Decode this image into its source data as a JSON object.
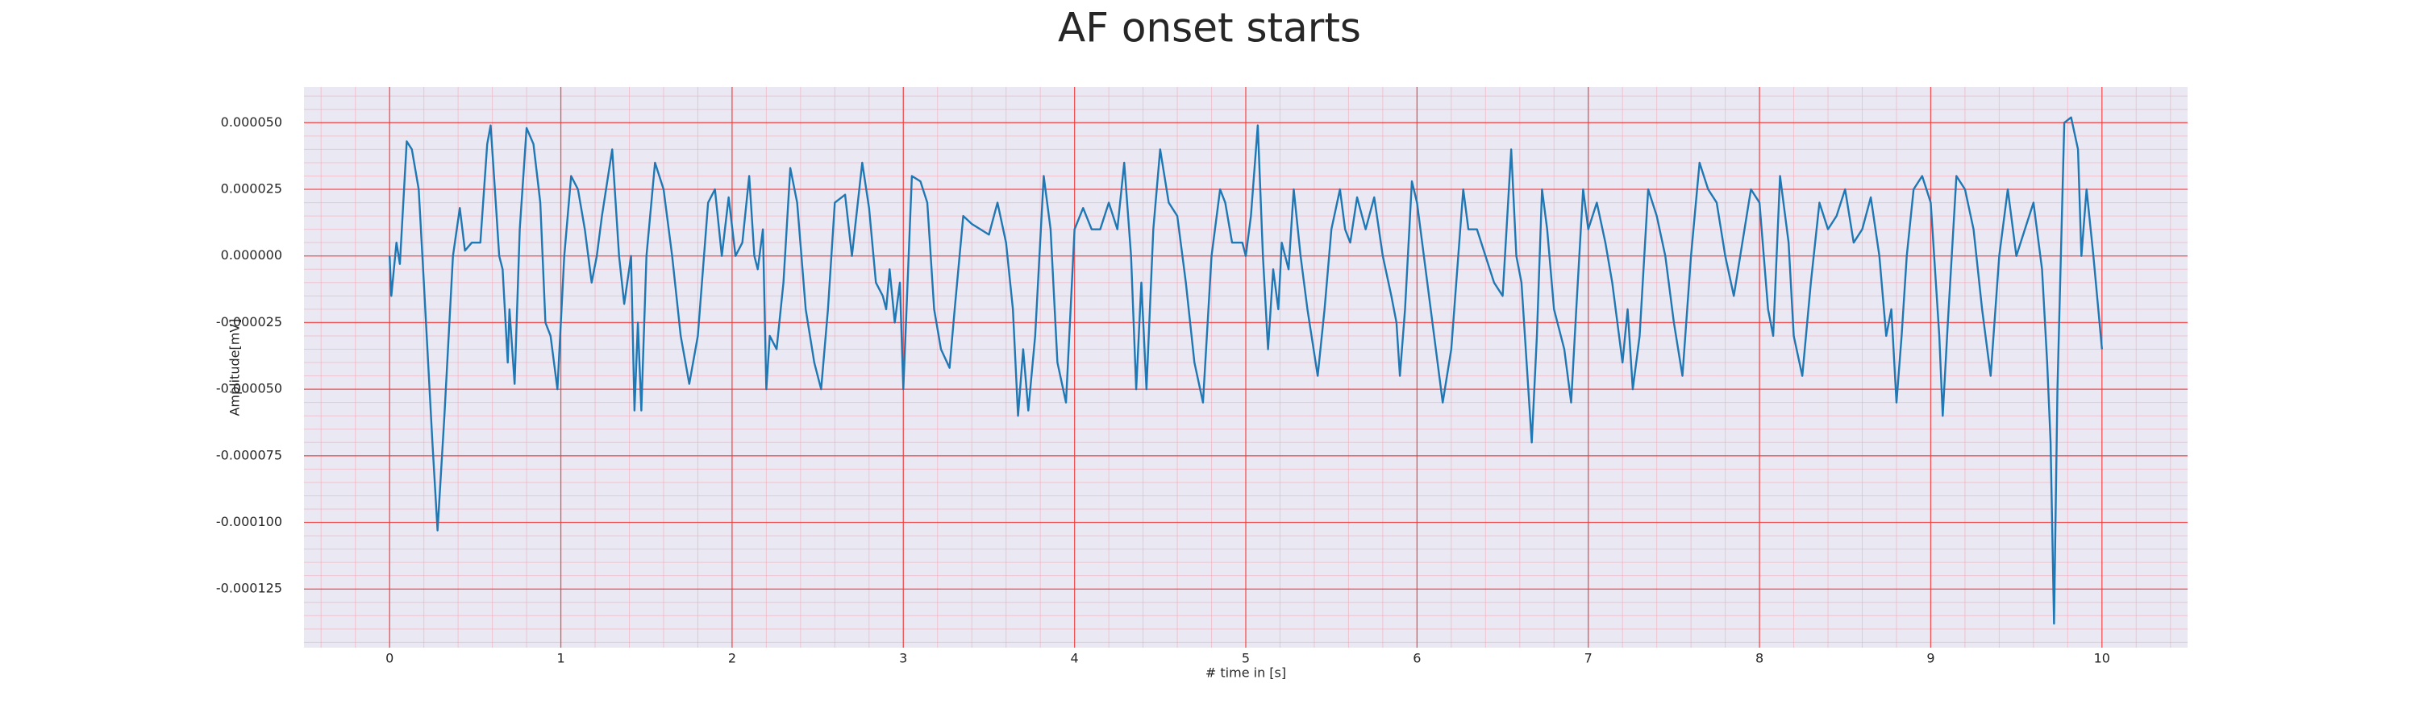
{
  "chart_data": {
    "type": "line",
    "title": "AF onset starts",
    "xlabel": "# time in [s]",
    "ylabel": "Amplitude[mV]",
    "color": "#1f77b4",
    "grid": true,
    "xlim": [
      -0.5,
      10.5
    ],
    "ylim": [
      -0.000147,
      6.34e-05
    ],
    "xticks": [
      0,
      1,
      2,
      3,
      4,
      5,
      6,
      7,
      8,
      9,
      10
    ],
    "yticks": [
      {
        "value": 5e-05,
        "label": "0.000050"
      },
      {
        "value": 2.5e-05,
        "label": "0.000025"
      },
      {
        "value": 0,
        "label": "0.000000"
      },
      {
        "value": -2.5e-05,
        "label": "-0.000025"
      },
      {
        "value": -5e-05,
        "label": "-0.000050"
      },
      {
        "value": -7.5e-05,
        "label": "-0.000075"
      },
      {
        "value": -0.0001,
        "label": "-0.000100"
      },
      {
        "value": -0.000125,
        "label": "-0.000125"
      }
    ],
    "x": [
      0,
      0.01,
      0.04,
      0.06,
      0.1,
      0.13,
      0.17,
      0.2,
      0.25,
      0.28,
      0.32,
      0.37,
      0.41,
      0.44,
      0.48,
      0.53,
      0.57,
      0.59,
      0.62,
      0.64,
      0.66,
      0.69,
      0.7,
      0.73,
      0.76,
      0.8,
      0.84,
      0.88,
      0.91,
      0.94,
      0.98,
      1.02,
      1.06,
      1.1,
      1.14,
      1.18,
      1.21,
      1.24,
      1.3,
      1.34,
      1.37,
      1.41,
      1.43,
      1.45,
      1.47,
      1.5,
      1.55,
      1.6,
      1.65,
      1.7,
      1.75,
      1.8,
      1.86,
      1.9,
      1.94,
      1.98,
      2.02,
      2.06,
      2.1,
      2.13,
      2.15,
      2.18,
      2.2,
      2.22,
      2.26,
      2.3,
      2.34,
      2.38,
      2.43,
      2.48,
      2.52,
      2.56,
      2.6,
      2.66,
      2.7,
      2.76,
      2.8,
      2.84,
      2.88,
      2.9,
      2.92,
      2.95,
      2.98,
      3.0,
      3.05,
      3.1,
      3.14,
      3.18,
      3.22,
      3.27,
      3.3,
      3.35,
      3.4,
      3.45,
      3.5,
      3.55,
      3.6,
      3.64,
      3.67,
      3.7,
      3.73,
      3.77,
      3.82,
      3.86,
      3.9,
      3.95,
      4.0,
      4.05,
      4.1,
      4.15,
      4.2,
      4.25,
      4.29,
      4.33,
      4.36,
      4.39,
      4.42,
      4.46,
      4.5,
      4.55,
      4.6,
      4.65,
      4.7,
      4.75,
      4.8,
      4.85,
      4.88,
      4.92,
      4.98,
      5.0,
      5.03,
      5.07,
      5.1,
      5.13,
      5.16,
      5.19,
      5.21,
      5.25,
      5.28,
      5.32,
      5.36,
      5.42,
      5.46,
      5.5,
      5.55,
      5.58,
      5.61,
      5.65,
      5.7,
      5.75,
      5.8,
      5.85,
      5.88,
      5.9,
      5.93,
      5.97,
      6.0,
      6.05,
      6.1,
      6.15,
      6.2,
      6.27,
      6.3,
      6.35,
      6.4,
      6.45,
      6.5,
      6.55,
      6.58,
      6.61,
      6.64,
      6.67,
      6.7,
      6.73,
      6.76,
      6.8,
      6.86,
      6.9,
      6.93,
      6.97,
      7.0,
      7.05,
      7.1,
      7.14,
      7.2,
      7.23,
      7.26,
      7.3,
      7.35,
      7.4,
      7.45,
      7.5,
      7.55,
      7.6,
      7.65,
      7.7,
      7.75,
      7.8,
      7.85,
      7.9,
      7.95,
      8.0,
      8.05,
      8.08,
      8.12,
      8.17,
      8.2,
      8.25,
      8.3,
      8.35,
      8.4,
      8.45,
      8.5,
      8.55,
      8.6,
      8.65,
      8.7,
      8.74,
      8.77,
      8.8,
      8.83,
      8.86,
      8.9,
      8.95,
      9.0,
      9.03,
      9.05,
      9.07,
      9.1,
      9.15,
      9.2,
      9.25,
      9.3,
      9.35,
      9.4,
      9.45,
      9.5,
      9.55,
      9.6,
      9.65,
      9.68,
      9.7,
      9.72,
      9.74,
      9.78,
      9.82,
      9.86,
      9.88,
      9.91,
      9.95,
      10.0
    ],
    "values": [
      0,
      -1.5e-05,
      5e-06,
      -3e-06,
      4.3e-05,
      4e-05,
      2.5e-05,
      -1e-05,
      -7e-05,
      -0.000103,
      -6e-05,
      0,
      1.8e-05,
      2e-06,
      5e-06,
      5e-06,
      4.2e-05,
      4.9e-05,
      2e-05,
      0,
      -5e-06,
      -4e-05,
      -2e-05,
      -4.8e-05,
      1e-05,
      4.8e-05,
      4.2e-05,
      2e-05,
      -2.5e-05,
      -3e-05,
      -5e-05,
      0,
      3e-05,
      2.5e-05,
      1e-05,
      -1e-05,
      0,
      1.5e-05,
      4e-05,
      0,
      -1.8e-05,
      0,
      -5.8e-05,
      -2.5e-05,
      -5.8e-05,
      0,
      3.5e-05,
      2.5e-05,
      0,
      -3e-05,
      -4.8e-05,
      -3e-05,
      2e-05,
      2.5e-05,
      0,
      2.2e-05,
      0,
      5e-06,
      3e-05,
      0,
      -5e-06,
      1e-05,
      -5e-05,
      -3e-05,
      -3.5e-05,
      -1e-05,
      3.3e-05,
      2e-05,
      -2e-05,
      -4e-05,
      -5e-05,
      -2e-05,
      2e-05,
      2.3e-05,
      0,
      3.5e-05,
      1.8e-05,
      -1e-05,
      -1.5e-05,
      -2e-05,
      -5e-06,
      -2.5e-05,
      -1e-05,
      -5e-05,
      3e-05,
      2.8e-05,
      2e-05,
      -2e-05,
      -3.5e-05,
      -4.2e-05,
      -2e-05,
      1.5e-05,
      1.2e-05,
      1e-05,
      8e-06,
      2e-05,
      5e-06,
      -2e-05,
      -6e-05,
      -3.5e-05,
      -5.8e-05,
      -3e-05,
      3e-05,
      1e-05,
      -4e-05,
      -5.5e-05,
      1e-05,
      1.8e-05,
      1e-05,
      1e-05,
      2e-05,
      1e-05,
      3.5e-05,
      0,
      -5e-05,
      -1e-05,
      -5e-05,
      1e-05,
      4e-05,
      2e-05,
      1.5e-05,
      -1e-05,
      -4e-05,
      -5.5e-05,
      0,
      2.5e-05,
      2e-05,
      5e-06,
      5e-06,
      0,
      1.5e-05,
      4.9e-05,
      0,
      -3.5e-05,
      -5e-06,
      -2e-05,
      5e-06,
      -5e-06,
      2.5e-05,
      0,
      -2e-05,
      -4.5e-05,
      -2e-05,
      1e-05,
      2.5e-05,
      1e-05,
      5e-06,
      2.2e-05,
      1e-05,
      2.2e-05,
      0,
      -1.5e-05,
      -2.5e-05,
      -4.5e-05,
      -2e-05,
      2.8e-05,
      2e-05,
      -5e-06,
      -3e-05,
      -5.5e-05,
      -3.5e-05,
      2.5e-05,
      1e-05,
      1e-05,
      0,
      -1e-05,
      -1.5e-05,
      4e-05,
      0,
      -1e-05,
      -4e-05,
      -7e-05,
      -3e-05,
      2.5e-05,
      1e-05,
      -2e-05,
      -3.5e-05,
      -5.5e-05,
      -2e-05,
      2.5e-05,
      1e-05,
      2e-05,
      5e-06,
      -1e-05,
      -4e-05,
      -2e-05,
      -5e-05,
      -3e-05,
      2.5e-05,
      1.5e-05,
      0,
      -2.5e-05,
      -4.5e-05,
      0,
      3.5e-05,
      2.5e-05,
      2e-05,
      0,
      -1.5e-05,
      5e-06,
      2.5e-05,
      2e-05,
      -2e-05,
      -3e-05,
      3e-05,
      5e-06,
      -3e-05,
      -4.5e-05,
      -1e-05,
      2e-05,
      1e-05,
      1.5e-05,
      2.5e-05,
      5e-06,
      1e-05,
      2.2e-05,
      0,
      -3e-05,
      -2e-05,
      -5.5e-05,
      -3e-05,
      0,
      2.5e-05,
      3e-05,
      2e-05,
      -1e-05,
      -3e-05,
      -6e-05,
      -2.5e-05,
      3e-05,
      2.5e-05,
      1e-05,
      -2e-05,
      -4.5e-05,
      0,
      2.5e-05,
      0,
      1e-05,
      2e-05,
      -5e-06,
      -4e-05,
      -7e-05,
      -0.000138,
      -5e-05,
      5e-05,
      5.2e-05,
      4e-05,
      0,
      2.5e-05,
      0,
      -3.5e-05
    ]
  }
}
